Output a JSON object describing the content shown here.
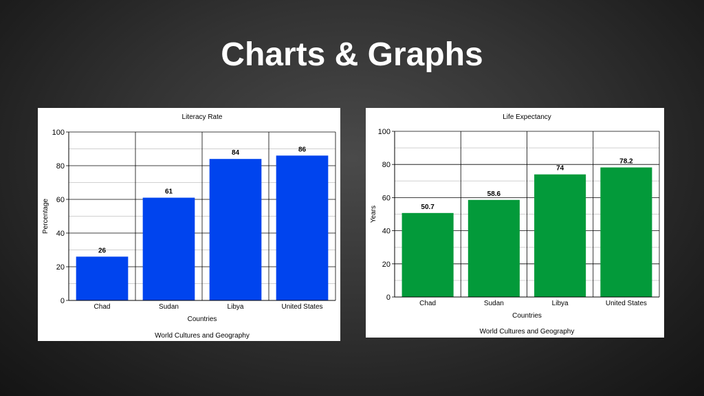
{
  "slide": {
    "title": "Charts & Graphs"
  },
  "chart_data": [
    {
      "type": "bar",
      "title": "Literacy Rate",
      "xlabel": "Countries",
      "ylabel": "Percentage",
      "footer": "World Cultures and Geography",
      "categories": [
        "Chad",
        "Sudan",
        "Libya",
        "United States"
      ],
      "values": [
        26,
        61,
        84,
        86
      ],
      "value_labels": [
        "26",
        "61",
        "84",
        "86"
      ],
      "ylim": [
        0,
        100
      ],
      "yticks": [
        0,
        20,
        40,
        60,
        80,
        100
      ],
      "grid": true,
      "bar_color": "#0044ee"
    },
    {
      "type": "bar",
      "title": "Life Expectancy",
      "xlabel": "Countries",
      "ylabel": "Years",
      "footer": "World Cultures and Geography",
      "categories": [
        "Chad",
        "Sudan",
        "Libya",
        "United States"
      ],
      "values": [
        50.7,
        58.6,
        74,
        78.2
      ],
      "value_labels": [
        "50.7",
        "58.6",
        "74",
        "78.2"
      ],
      "ylim": [
        0,
        100
      ],
      "yticks": [
        0,
        20,
        40,
        60,
        80,
        100
      ],
      "grid": true,
      "bar_color": "#039a3a"
    }
  ]
}
